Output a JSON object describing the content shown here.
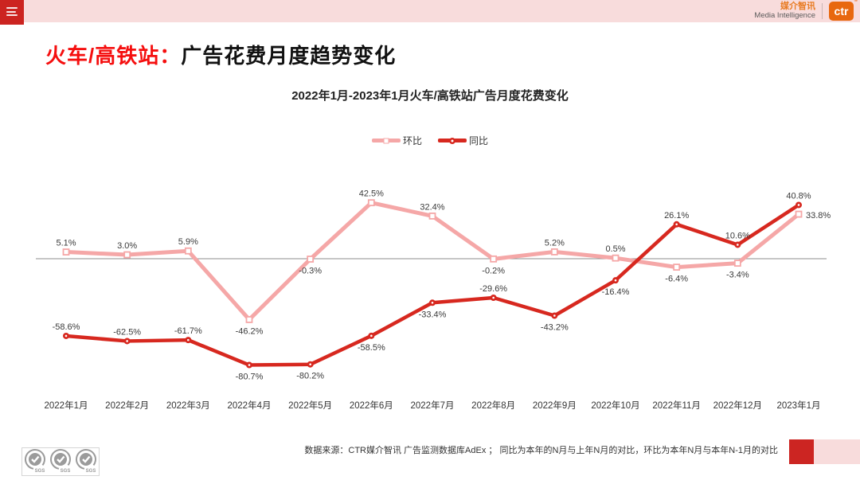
{
  "topbar": {
    "brand_cn": "媒介智讯",
    "brand_en": "Media Intelligence",
    "logo": "ctr",
    "logo_mark": "®"
  },
  "header": {
    "title_highlight": "火车/高铁站：",
    "title_rest": "广告花费月度趋势变化"
  },
  "chart_data": {
    "type": "line",
    "title": "2022年1月-2023年1月火车/高铁站广告月度花费变化",
    "categories": [
      "2022年1月",
      "2022年2月",
      "2022年3月",
      "2022年4月",
      "2022年5月",
      "2022年6月",
      "2022年7月",
      "2022年8月",
      "2022年9月",
      "2022年10月",
      "2022年11月",
      "2022年12月",
      "2023年1月"
    ],
    "series": [
      {
        "name": "环比",
        "color": "#F5A7A7",
        "marker": "square",
        "values": [
          5.1,
          3.0,
          5.9,
          -46.2,
          -0.3,
          42.5,
          32.4,
          -0.2,
          5.2,
          0.5,
          -6.4,
          -3.4,
          33.8
        ],
        "label_sides": [
          "above",
          "above",
          "above",
          "below",
          "below",
          "above",
          "above",
          "below",
          "above",
          "above",
          "below",
          "below",
          "right"
        ]
      },
      {
        "name": "同比",
        "color": "#D7281F",
        "marker": "dot",
        "values": [
          -58.6,
          -62.5,
          -61.7,
          -80.7,
          -80.2,
          -58.5,
          -33.4,
          -29.6,
          -43.2,
          -16.4,
          26.1,
          10.6,
          40.8
        ],
        "label_sides": [
          "above",
          "above",
          "above",
          "below",
          "below",
          "below",
          "below",
          "above",
          "below",
          "below",
          "above",
          "above",
          "above"
        ]
      }
    ],
    "ylim": [
      -90,
      50
    ],
    "grid": "zero-line-only",
    "legend_position": "top-center",
    "label_format": "one-decimal-percent"
  },
  "footer": {
    "source_note": "数据来源：CTR媒介智讯 广告监测数据库AdEx ； 同比为本年的N月与上年N月的对比，环比为本年N月与本年N-1月的对比",
    "sgs_label": "SGS"
  },
  "colors": {
    "topbar_pink": "#F8DCDC",
    "menu_red": "#CC2420",
    "title_red": "#F50F0F",
    "huanbi_line": "#F5A7A7",
    "tongbi_line": "#D7281F",
    "logo_orange": "#E8680F",
    "zero_line": "#8c8c8c"
  }
}
